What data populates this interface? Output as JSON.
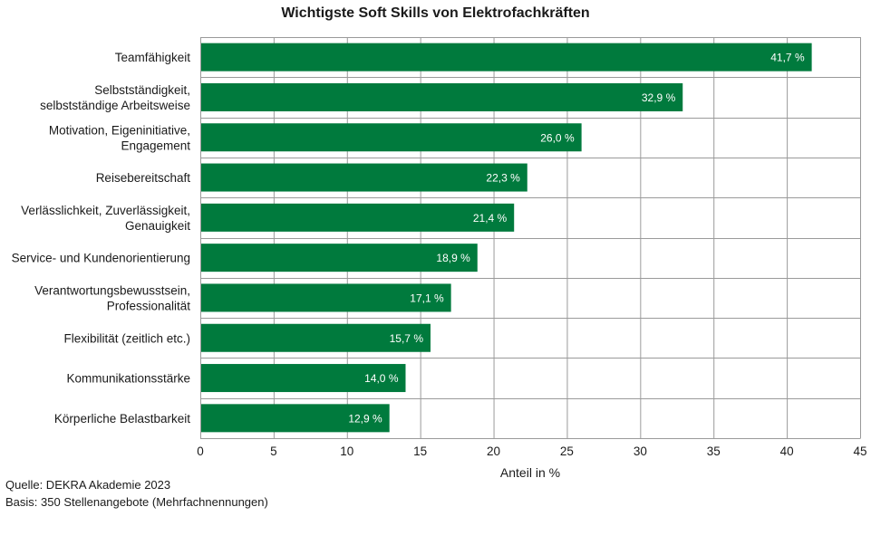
{
  "chart_data": {
    "type": "bar",
    "orientation": "horizontal",
    "title": "Wichtigste Soft Skills von Elektrofachkräften",
    "xlabel": "Anteil in %",
    "ylabel": "",
    "xlim": [
      0,
      45
    ],
    "xticks": [
      0,
      5,
      10,
      15,
      20,
      25,
      30,
      35,
      40,
      45
    ],
    "grid": true,
    "bar_color": "#007a3d",
    "grid_color": "#9a9a9a",
    "categories": [
      [
        "Teamfähigkeit"
      ],
      [
        "Selbstständigkeit,",
        "selbstständige Arbeitsweise"
      ],
      [
        "Motivation, Eigeninitiative,",
        "Engagement"
      ],
      [
        "Reisebereitschaft"
      ],
      [
        "Verlässlichkeit, Zuverlässigkeit,",
        "Genauigkeit"
      ],
      [
        "Service- und Kundenorientierung"
      ],
      [
        "Verantwortungsbewusstsein,",
        "Professionalität"
      ],
      [
        "Flexibilität (zeitlich etc.)"
      ],
      [
        "Kommunikationsstärke"
      ],
      [
        "Körperliche Belastbarkeit"
      ]
    ],
    "values": [
      41.7,
      32.9,
      26.0,
      22.3,
      21.4,
      18.9,
      17.1,
      15.7,
      14.0,
      12.9
    ],
    "value_labels": [
      "41,7 %",
      "32,9 %",
      "26,0 %",
      "22,3 %",
      "21,4 %",
      "18,9 %",
      "17,1 %",
      "15,7 %",
      "14,0 %",
      "12,9 %"
    ]
  },
  "footer": {
    "source": "Quelle: DEKRA Akademie 2023",
    "basis": "Basis: 350 Stellenangebote (Mehrfachnennungen)"
  }
}
